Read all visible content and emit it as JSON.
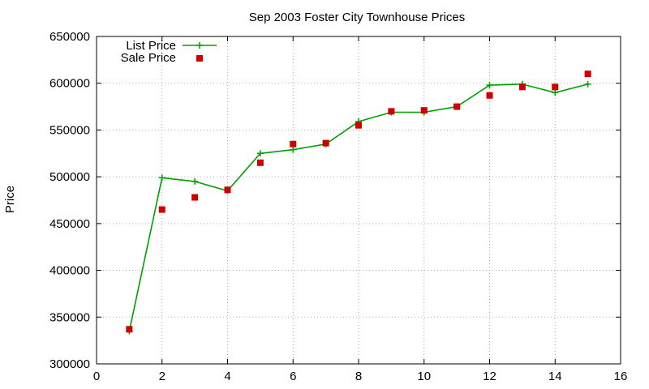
{
  "chart_data": {
    "type": "line",
    "title": "Sep 2003 Foster City Townhouse Prices",
    "xlabel": "",
    "ylabel": "Price",
    "xlim": [
      0,
      16
    ],
    "ylim": [
      300000,
      650000
    ],
    "xticks": [
      0,
      2,
      4,
      6,
      8,
      10,
      12,
      14,
      16
    ],
    "yticks": [
      300000,
      350000,
      400000,
      450000,
      500000,
      550000,
      600000,
      650000
    ],
    "grid": true,
    "legend_position": "top-left",
    "series": [
      {
        "name": "List Price",
        "style": "line-with-plus-markers",
        "color": "#00a000",
        "x": [
          1,
          2,
          3,
          4,
          5,
          6,
          7,
          8,
          9,
          10,
          11,
          12,
          13,
          14,
          15
        ],
        "values": [
          335000,
          499000,
          495000,
          485000,
          525000,
          529000,
          535000,
          559000,
          569000,
          569000,
          575000,
          598000,
          599000,
          590000,
          599000
        ]
      },
      {
        "name": "Sale Price",
        "style": "square-markers",
        "color": "#cc0000",
        "x": [
          1,
          2,
          3,
          4,
          5,
          6,
          7,
          8,
          9,
          10,
          11,
          12,
          13,
          14,
          15
        ],
        "values": [
          337000,
          465000,
          478000,
          486000,
          515000,
          535000,
          536000,
          555000,
          570000,
          571000,
          575000,
          587000,
          596000,
          596000,
          610000
        ]
      }
    ]
  }
}
